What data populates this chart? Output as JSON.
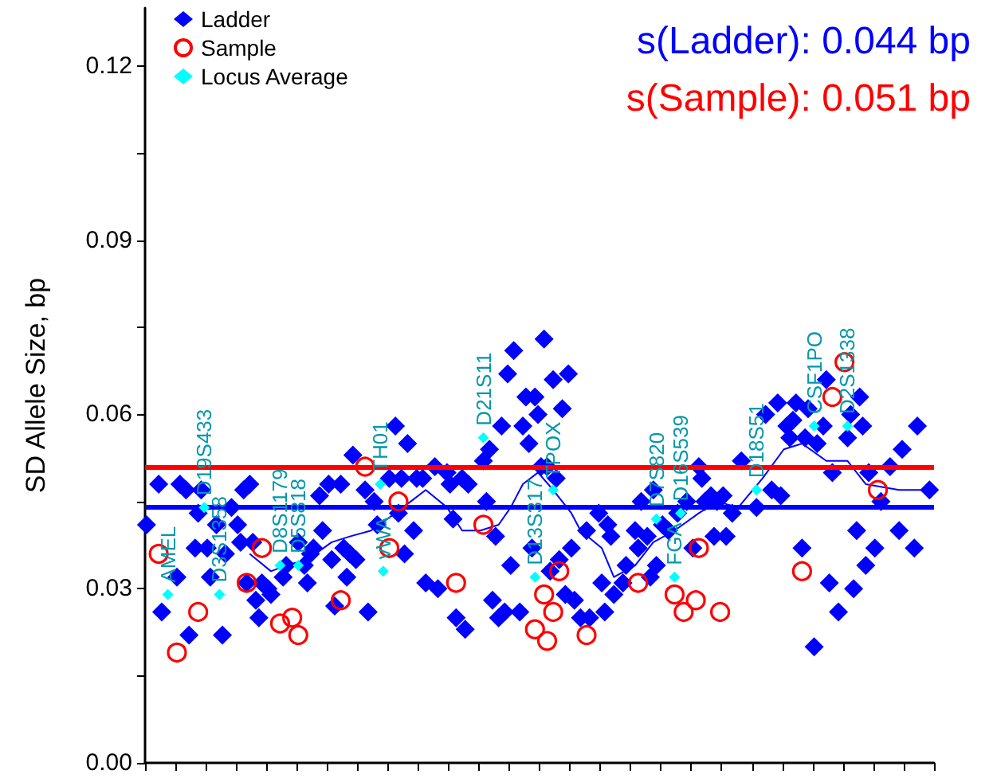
{
  "chart_data": {
    "type": "scatter",
    "ylabel": "SD Allele Size, bp",
    "categories": [
      null,
      null,
      null,
      null,
      null,
      null,
      null,
      null,
      null,
      null,
      null,
      null,
      null,
      null,
      null,
      null,
      null,
      null,
      null,
      null,
      null,
      null,
      null,
      null,
      null,
      null,
      null,
      null,
      null,
      null,
      null,
      null,
      null,
      null,
      null,
      null,
      null,
      null,
      null,
      null,
      null,
      null,
      null,
      null,
      null,
      null,
      null,
      null,
      null,
      null,
      null,
      null,
      null,
      null,
      null,
      null,
      null,
      null,
      null,
      null,
      null,
      null,
      null,
      null,
      null,
      null,
      null,
      null,
      null,
      null,
      null,
      null,
      null,
      null,
      null,
      null,
      null,
      null,
      null,
      null,
      null,
      null,
      null,
      null,
      null,
      null,
      null,
      null,
      null,
      null,
      null,
      null,
      null,
      null,
      null,
      null,
      null,
      null,
      null,
      null,
      null,
      null,
      null,
      null,
      null,
      null,
      null,
      null,
      null,
      null,
      null,
      null,
      null,
      null,
      null,
      null,
      null,
      null,
      null,
      null,
      null,
      null,
      null,
      null,
      null,
      null,
      null,
      null,
      null,
      null,
      null,
      null,
      null,
      null,
      null,
      null,
      null,
      null,
      null,
      null,
      null,
      null,
      null,
      null,
      null,
      null,
      null,
      null,
      null,
      null,
      null,
      null,
      null,
      null,
      null,
      null,
      null,
      null,
      null,
      null,
      null,
      null,
      null,
      null,
      null,
      null,
      null,
      null,
      null,
      null,
      null,
      null,
      null,
      null,
      null,
      null,
      null,
      null,
      null,
      null,
      null,
      null,
      null,
      null,
      null,
      null,
      null,
      null,
      null,
      null,
      null,
      null,
      null,
      null,
      null,
      null,
      null,
      null,
      null,
      null,
      null,
      null,
      null,
      null,
      null,
      null,
      null,
      null,
      null,
      null,
      null,
      null,
      null,
      null,
      null,
      null,
      null,
      null,
      null,
      null,
      null,
      null,
      null,
      null,
      null,
      null,
      null,
      null,
      null,
      null,
      null,
      null,
      null,
      null,
      null,
      null,
      null,
      null,
      null,
      null,
      null,
      null,
      null,
      null,
      null,
      null,
      null,
      null,
      null,
      null,
      null,
      null,
      null,
      null,
      null,
      null,
      null,
      null,
      null,
      null
    ],
    "series": [
      {
        "name": "Ladder",
        "marker": "diamond",
        "color": "#0000ff",
        "values": [
          0.041,
          null,
          null,
          null,
          0.048,
          0.026,
          null,
          null,
          null,
          null,
          0.032,
          0.048,
          null,
          0.047,
          0.022,
          null,
          0.037,
          0.043,
          0.047,
          null,
          0.037,
          0.032,
          null,
          0.041,
          null,
          0.022,
          0.036,
          null,
          0.044,
          null,
          0.041,
          0.038,
          0.047,
          0.031,
          0.048,
          0.038,
          0.028,
          0.025,
          0.031,
          null,
          0.03,
          0.029,
          null,
          null,
          null,
          0.032,
          0.034,
          null,
          null,
          null,
          0.038,
          null,
          0.034,
          0.031,
          0.036,
          0.037,
          null,
          0.046,
          0.04,
          null,
          0.048,
          0.035,
          0.027,
          null,
          0.048,
          0.037,
          0.032,
          0.036,
          0.053,
          0.035,
          null,
          null,
          0.047,
          0.026,
          null,
          0.045,
          0.041,
          null,
          null,
          null,
          0.049,
          null,
          0.058,
          0.043,
          0.049,
          0.036,
          0.055,
          null,
          0.04,
          0.049,
          null,
          0.049,
          0.031,
          null,
          null,
          0.051,
          0.03,
          null,
          null,
          0.05,
          0.048,
          0.042,
          0.025,
          null,
          0.049,
          0.023,
          0.048,
          null,
          null,
          null,
          null,
          0.052,
          0.045,
          0.054,
          0.028,
          0.039,
          0.025,
          0.058,
          0.026,
          0.067,
          0.034,
          0.071,
          null,
          0.026,
          0.058,
          0.063,
          0.055,
          0.037,
          0.063,
          0.06,
          0.051,
          0.073,
          0.051,
          0.033,
          0.066,
          0.049,
          0.035,
          0.061,
          0.029,
          0.067,
          0.037,
          0.028,
          null,
          0.025,
          null,
          0.04,
          0.025,
          null,
          null,
          0.043,
          0.031,
          0.026,
          0.041,
          0.039,
          0.029,
          null,
          null,
          0.031,
          0.034,
          null,
          null,
          0.04,
          0.037,
          0.045,
          null,
          0.039,
          0.032,
          0.047,
          0.034,
          null,
          0.041,
          null,
          0.04,
          null,
          null,
          0.043,
          null,
          null,
          0.045,
          null,
          0.037,
          null,
          0.051,
          0.049,
          0.045,
          null,
          0.046,
          0.039,
          0.045,
          null,
          0.046,
          0.039,
          null,
          0.043,
          null,
          null,
          0.052,
          null,
          null,
          null,
          null,
          0.044,
          null,
          null,
          0.06,
          null,
          0.047,
          null,
          0.062,
          0.046,
          null,
          0.058,
          0.056,
          0.059,
          0.062,
          null,
          0.037,
          0.056,
          0.061,
          null,
          0.02,
          0.055,
          null,
          0.058,
          0.066,
          0.031,
          0.05,
          null,
          0.026,
          null,
          null,
          0.056,
          0.06,
          0.03,
          0.04,
          0.063,
          0.058,
          0.034,
          0.05,
          null,
          0.037,
          null,
          0.045,
          null,
          null,
          0.051,
          null,
          null,
          0.04,
          0.054,
          null,
          null,
          null,
          0.037,
          0.058,
          null,
          null,
          null,
          0.047,
          null
        ]
      },
      {
        "name": "Sample",
        "marker": "circle",
        "color": "#ff0000",
        "values": [
          null,
          null,
          null,
          null,
          0.036,
          null,
          null,
          null,
          null,
          null,
          0.019,
          null,
          null,
          null,
          null,
          null,
          null,
          0.026,
          null,
          null,
          null,
          null,
          null,
          null,
          null,
          null,
          null,
          null,
          null,
          null,
          null,
          null,
          null,
          0.031,
          null,
          null,
          null,
          null,
          0.037,
          null,
          null,
          null,
          null,
          null,
          0.024,
          null,
          null,
          null,
          0.025,
          null,
          0.022,
          null,
          null,
          null,
          null,
          null,
          null,
          null,
          null,
          null,
          null,
          null,
          null,
          null,
          0.028,
          null,
          null,
          null,
          null,
          null,
          null,
          null,
          0.051,
          null,
          null,
          null,
          null,
          null,
          null,
          null,
          0.037,
          null,
          null,
          0.045,
          null,
          null,
          null,
          null,
          null,
          null,
          null,
          null,
          null,
          null,
          null,
          null,
          null,
          null,
          null,
          null,
          null,
          null,
          0.031,
          null,
          null,
          null,
          null,
          null,
          null,
          null,
          null,
          0.041,
          null,
          null,
          null,
          null,
          null,
          null,
          null,
          null,
          null,
          null,
          null,
          null,
          null,
          null,
          null,
          null,
          0.023,
          null,
          null,
          0.029,
          0.021,
          null,
          0.026,
          null,
          0.033,
          null,
          null,
          null,
          null,
          null,
          null,
          null,
          null,
          0.022,
          null,
          null,
          null,
          null,
          null,
          null,
          null,
          null,
          null,
          null,
          null,
          null,
          null,
          null,
          null,
          null,
          0.031,
          null,
          null,
          null,
          null,
          null,
          null,
          null,
          null,
          null,
          null,
          null,
          0.029,
          null,
          null,
          0.026,
          null,
          null,
          null,
          0.028,
          0.037,
          null,
          null,
          null,
          null,
          null,
          null,
          0.026,
          null,
          null,
          null,
          null,
          null,
          null,
          null,
          null,
          null,
          null,
          null,
          null,
          null,
          null,
          null,
          null,
          null,
          null,
          null,
          null,
          null,
          null,
          null,
          null,
          null,
          null,
          0.033,
          null,
          null,
          null,
          null,
          null,
          null,
          null,
          null,
          null,
          0.063,
          null,
          null,
          null,
          0.069,
          null,
          null,
          null,
          null,
          null,
          null,
          null,
          null,
          null,
          null,
          0.047,
          null,
          null,
          null,
          null,
          null,
          null,
          null,
          null,
          null,
          null,
          null,
          null,
          null,
          null,
          null,
          null,
          null,
          null
        ]
      },
      {
        "name": "Locus Average",
        "marker": "diamond",
        "color": "#00ffff",
        "values": [
          null,
          null,
          null,
          null,
          null,
          null,
          null,
          0.029,
          null,
          null,
          null,
          null,
          null,
          null,
          null,
          null,
          null,
          null,
          null,
          0.044,
          null,
          null,
          null,
          null,
          0.029,
          null,
          null,
          null,
          null,
          null,
          null,
          null,
          null,
          null,
          null,
          null,
          null,
          null,
          null,
          null,
          null,
          null,
          null,
          null,
          0.034,
          null,
          null,
          null,
          null,
          null,
          0.034,
          null,
          null,
          null,
          null,
          null,
          null,
          null,
          null,
          null,
          null,
          null,
          null,
          null,
          null,
          null,
          null,
          null,
          null,
          null,
          null,
          null,
          null,
          null,
          null,
          null,
          null,
          0.048,
          0.033,
          null,
          null,
          null,
          null,
          null,
          null,
          null,
          null,
          null,
          null,
          null,
          null,
          null,
          null,
          null,
          null,
          null,
          null,
          null,
          null,
          null,
          null,
          null,
          null,
          null,
          null,
          null,
          null,
          null,
          null,
          null,
          null,
          0.056,
          null,
          null,
          null,
          null,
          null,
          null,
          null,
          null,
          null,
          null,
          null,
          null,
          null,
          null,
          null,
          null,
          0.032,
          null,
          null,
          null,
          null,
          null,
          0.047,
          null,
          null,
          null,
          null,
          null,
          null,
          null,
          null,
          null,
          null,
          null,
          null,
          null,
          null,
          null,
          null,
          null,
          null,
          null,
          null,
          null,
          null,
          null,
          null,
          null,
          null,
          null,
          null,
          null,
          null,
          null,
          null,
          null,
          0.042,
          null,
          null,
          null,
          null,
          null,
          0.032,
          null,
          0.043,
          null,
          null,
          null,
          null,
          null,
          null,
          null,
          null,
          null,
          null,
          null,
          null,
          null,
          null,
          null,
          null,
          null,
          null,
          null,
          null,
          null,
          null,
          null,
          null,
          0.047,
          null,
          null,
          null,
          null,
          null,
          null,
          null,
          null,
          null,
          null,
          null,
          null,
          null,
          null,
          null,
          null,
          null,
          null,
          0.058,
          null,
          null,
          null,
          null,
          null,
          null,
          null,
          null,
          null,
          null,
          0.058,
          null,
          null,
          null,
          null,
          null,
          null,
          null,
          null,
          null,
          null,
          null,
          null,
          null,
          null,
          null,
          null,
          null,
          null,
          null,
          null,
          null,
          null,
          null,
          null,
          null,
          null,
          null,
          null
        ],
        "value_labels": [
          null,
          null,
          null,
          null,
          null,
          null,
          null,
          "AMEL",
          null,
          null,
          null,
          null,
          null,
          null,
          null,
          null,
          null,
          null,
          null,
          "D19S433",
          null,
          null,
          null,
          null,
          "D3S1358",
          null,
          null,
          null,
          null,
          null,
          null,
          null,
          null,
          null,
          null,
          null,
          null,
          null,
          null,
          null,
          null,
          null,
          null,
          null,
          "D8S1179",
          null,
          null,
          null,
          null,
          null,
          "D5S818",
          null,
          null,
          null,
          null,
          null,
          null,
          null,
          null,
          null,
          null,
          null,
          null,
          null,
          null,
          null,
          null,
          null,
          null,
          null,
          null,
          null,
          null,
          null,
          null,
          null,
          null,
          "TH01",
          "vWA",
          null,
          null,
          null,
          null,
          null,
          null,
          null,
          null,
          null,
          null,
          null,
          null,
          null,
          null,
          null,
          null,
          null,
          null,
          null,
          null,
          null,
          null,
          null,
          null,
          null,
          null,
          null,
          null,
          null,
          null,
          null,
          null,
          "D21S11",
          null,
          null,
          null,
          null,
          null,
          null,
          null,
          null,
          null,
          null,
          null,
          null,
          null,
          null,
          null,
          null,
          "D13S317",
          null,
          null,
          null,
          null,
          null,
          "TPOX",
          null,
          null,
          null,
          null,
          null,
          null,
          null,
          null,
          null,
          null,
          null,
          null,
          null,
          null,
          null,
          null,
          null,
          null,
          null,
          null,
          null,
          null,
          null,
          null,
          null,
          null,
          null,
          null,
          null,
          null,
          null,
          null,
          null,
          "D7S820",
          null,
          null,
          null,
          null,
          null,
          "FGA",
          null,
          "D16S539",
          null,
          null,
          null,
          null,
          null,
          null,
          null,
          null,
          null,
          null,
          null,
          null,
          null,
          null,
          null,
          null,
          null,
          null,
          null,
          null,
          null,
          null,
          null,
          null,
          "D18S51",
          null,
          null,
          null,
          null,
          null,
          null,
          null,
          null,
          null,
          null,
          null,
          null,
          null,
          null,
          null,
          null,
          null,
          null,
          "CSF1PO",
          null,
          null,
          null,
          null,
          null,
          null,
          null,
          null,
          null,
          null,
          "D2S1338",
          null,
          null,
          null,
          null,
          null,
          null,
          null,
          null,
          null,
          null,
          null,
          null,
          null,
          null,
          null,
          null,
          null,
          null,
          null,
          null,
          null,
          null,
          null,
          null,
          null,
          null,
          null,
          null
        ]
      },
      {
        "type": "line",
        "color": "#0000ff",
        "values": [
          null,
          null,
          null,
          null,
          null,
          null,
          null,
          null,
          null,
          null,
          null,
          null,
          null,
          null,
          null,
          null,
          null,
          null,
          null,
          null,
          null,
          null,
          null,
          null,
          null,
          null,
          null,
          null,
          null,
          null,
          null,
          null,
          null,
          null,
          0.036,
          null,
          null,
          null,
          null,
          null,
          null,
          0.033,
          null,
          null,
          null,
          null,
          0.034,
          null,
          null,
          null,
          null,
          null,
          null,
          0.035,
          null,
          null,
          null,
          null,
          null,
          null,
          null,
          0.038,
          null,
          null,
          null,
          null,
          null,
          0.039,
          null,
          null,
          null,
          null,
          null,
          null,
          0.04,
          null,
          null,
          null,
          null,
          null,
          null,
          null,
          0.043,
          null,
          null,
          null,
          null,
          0.045,
          null,
          null,
          null,
          null,
          0.047,
          null,
          null,
          null,
          null,
          null,
          null,
          0.044,
          null,
          null,
          null,
          null,
          0.04,
          null,
          null,
          null,
          null,
          null,
          0.04,
          null,
          null,
          null,
          null,
          null,
          0.041,
          null,
          null,
          null,
          0.044,
          null,
          null,
          null,
          0.048,
          null,
          null,
          null,
          null,
          0.05,
          null,
          null,
          null,
          null,
          0.047,
          null,
          null,
          null,
          null,
          null,
          0.043,
          null,
          null,
          0.04,
          null,
          null,
          null,
          null,
          null,
          null,
          0.037,
          null,
          null,
          null,
          0.032,
          null,
          null,
          null,
          null,
          null,
          null,
          0.034,
          null,
          null,
          null,
          null,
          null,
          0.038,
          null,
          null,
          null,
          null,
          null,
          null,
          0.04,
          null,
          null,
          null,
          null,
          null,
          null,
          null,
          0.043,
          null,
          null,
          null,
          null,
          null,
          0.045,
          null,
          null,
          null,
          null,
          null,
          null,
          0.044,
          null,
          null,
          null,
          null,
          null,
          null,
          null,
          0.049,
          null,
          null,
          null,
          null,
          null,
          null,
          0.054,
          null,
          null,
          null,
          null,
          null,
          0.055,
          null,
          null,
          null,
          null,
          null,
          null,
          null,
          0.052,
          null,
          null,
          null,
          null,
          null,
          null,
          0.052,
          null,
          null,
          null,
          null,
          null,
          0.048,
          null,
          null,
          null,
          null,
          null,
          null,
          null,
          null,
          null,
          null,
          0.047,
          null,
          null,
          null,
          null,
          null,
          null,
          null,
          null,
          null,
          0.047,
          null
        ]
      }
    ],
    "ref_lines": [
      {
        "axis": "y",
        "value": 0.044,
        "label": "s(Ladder): 0.044 bp",
        "color": "#0000ff"
      },
      {
        "axis": "y",
        "value": 0.051,
        "label": "s(Sample): 0.051 bp",
        "color": "#ff0000"
      }
    ],
    "ylim": [
      0,
      0.13
    ],
    "yticks": [
      {
        "value": 0,
        "label": "0.00"
      },
      {
        "value": 0.015,
        "label": null
      },
      0.03,
      {
        "value": 0.045,
        "label": null
      },
      0.06,
      {
        "value": 0.075,
        "label": null
      },
      0.09,
      {
        "value": 0.105,
        "label": null
      },
      0.12
    ],
    "tick_labels": "y",
    "grid": false,
    "legend": "top left"
  }
}
